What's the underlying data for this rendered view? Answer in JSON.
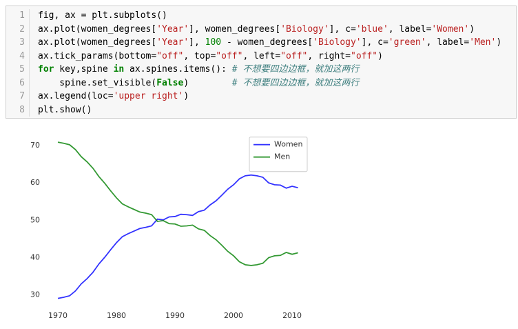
{
  "code": {
    "line_numbers": [
      1,
      2,
      3,
      4,
      5,
      6,
      7,
      8
    ],
    "lines": [
      [
        {
          "text": "fig, ax = plt.subplots()",
          "color": "#000000"
        }
      ],
      [
        {
          "text": "ax.plot(women_degrees[",
          "color": "#000000"
        },
        {
          "text": "'Year'",
          "color": "#ba2121"
        },
        {
          "text": "], women_degrees[",
          "color": "#000000"
        },
        {
          "text": "'Biology'",
          "color": "#ba2121"
        },
        {
          "text": "], c=",
          "color": "#000000"
        },
        {
          "text": "'blue'",
          "color": "#ba2121"
        },
        {
          "text": ", label=",
          "color": "#000000"
        },
        {
          "text": "'Women'",
          "color": "#ba2121"
        },
        {
          "text": ")",
          "color": "#000000"
        }
      ],
      [
        {
          "text": "ax.plot(women_degrees[",
          "color": "#000000"
        },
        {
          "text": "'Year'",
          "color": "#ba2121"
        },
        {
          "text": "], ",
          "color": "#000000"
        },
        {
          "text": "100",
          "color": "#008000"
        },
        {
          "text": " - women_degrees[",
          "color": "#000000"
        },
        {
          "text": "'Biology'",
          "color": "#ba2121"
        },
        {
          "text": "], c=",
          "color": "#000000"
        },
        {
          "text": "'green'",
          "color": "#ba2121"
        },
        {
          "text": ", label=",
          "color": "#000000"
        },
        {
          "text": "'Men'",
          "color": "#ba2121"
        },
        {
          "text": ")",
          "color": "#000000"
        }
      ],
      [
        {
          "text": "ax.tick_params(bottom=",
          "color": "#000000"
        },
        {
          "text": "\"off\"",
          "color": "#ba2121"
        },
        {
          "text": ", top=",
          "color": "#000000"
        },
        {
          "text": "\"off\"",
          "color": "#ba2121"
        },
        {
          "text": ", left=",
          "color": "#000000"
        },
        {
          "text": "\"off\"",
          "color": "#ba2121"
        },
        {
          "text": ", right=",
          "color": "#000000"
        },
        {
          "text": "\"off\"",
          "color": "#ba2121"
        },
        {
          "text": ")",
          "color": "#000000"
        }
      ],
      [
        {
          "text": "for",
          "color": "#008000",
          "bold": true
        },
        {
          "text": " key,spine ",
          "color": "#000000"
        },
        {
          "text": "in",
          "color": "#008000",
          "bold": true
        },
        {
          "text": " ax.spines.items(): ",
          "color": "#000000"
        },
        {
          "text": "# 不想要四边边框，就加这两行",
          "color": "#408080",
          "italic": true
        }
      ],
      [
        {
          "text": "    spine.set_visible(",
          "color": "#000000"
        },
        {
          "text": "False",
          "color": "#008000",
          "bold": true
        },
        {
          "text": ")        ",
          "color": "#000000"
        },
        {
          "text": "# 不想要四边边框，就加这两行",
          "color": "#408080",
          "italic": true
        }
      ],
      [
        {
          "text": "ax.legend(loc=",
          "color": "#000000"
        },
        {
          "text": "'upper right'",
          "color": "#ba2121"
        },
        {
          "text": ")",
          "color": "#000000"
        }
      ],
      [
        {
          "text": "plt.show()",
          "color": "#000000"
        }
      ]
    ]
  },
  "chart_data": {
    "type": "line",
    "x": [
      1970,
      1971,
      1972,
      1973,
      1974,
      1975,
      1976,
      1977,
      1978,
      1979,
      1980,
      1981,
      1982,
      1983,
      1984,
      1985,
      1986,
      1987,
      1988,
      1989,
      1990,
      1991,
      1992,
      1993,
      1994,
      1995,
      1996,
      1997,
      1998,
      1999,
      2000,
      2001,
      2002,
      2003,
      2004,
      2005,
      2006,
      2007,
      2008,
      2009,
      2010,
      2011
    ],
    "series": [
      {
        "name": "Women",
        "color": "#0000ff",
        "values": [
          29.1,
          29.4,
          29.8,
          31.1,
          33.0,
          34.4,
          36.1,
          38.3,
          40.1,
          42.1,
          44.0,
          45.6,
          46.4,
          47.1,
          47.8,
          48.1,
          48.5,
          50.3,
          50.1,
          50.9,
          51.0,
          51.6,
          51.5,
          51.3,
          52.3,
          52.7,
          54.1,
          55.2,
          56.7,
          58.3,
          59.5,
          61.1,
          61.9,
          62.1,
          61.9,
          61.5,
          60.0,
          59.5,
          59.4,
          58.6,
          59.1,
          58.7
        ]
      },
      {
        "name": "Men",
        "color": "#008000",
        "values": [
          70.9,
          70.6,
          70.2,
          68.9,
          67.0,
          65.6,
          63.9,
          61.7,
          59.9,
          57.9,
          56.0,
          54.4,
          53.6,
          52.9,
          52.2,
          51.9,
          51.5,
          49.7,
          49.9,
          49.1,
          49.0,
          48.4,
          48.5,
          48.7,
          47.7,
          47.3,
          45.9,
          44.8,
          43.3,
          41.7,
          40.5,
          38.9,
          38.1,
          37.9,
          38.1,
          38.5,
          40.0,
          40.5,
          40.6,
          41.4,
          40.9,
          41.3
        ]
      }
    ],
    "xlim": [
      1967.95,
      2013.05
    ],
    "xticks": [
      1970,
      1980,
      1990,
      2000,
      2010
    ],
    "ylim": [
      27.0,
      73.0
    ],
    "yticks": [
      30,
      40,
      50,
      60,
      70
    ],
    "legend": "upper right",
    "grid": false
  }
}
